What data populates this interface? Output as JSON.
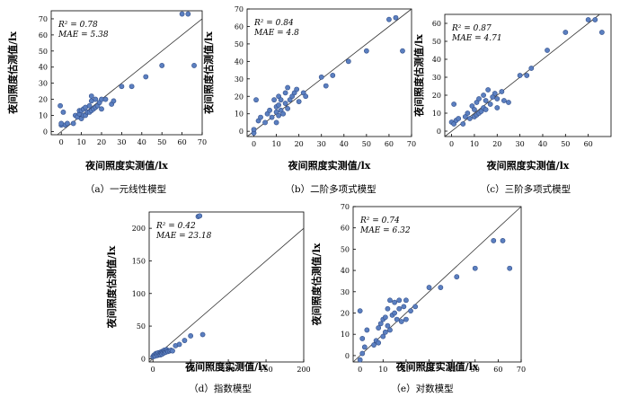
{
  "chart_data": [
    {
      "type": "scatter",
      "caption": "（a）一元线性模型",
      "xlabel": "夜间照度实测值/lx",
      "ylabel": "夜间照度估测值/lx",
      "xlim": [
        -5,
        70
      ],
      "ylim": [
        -2,
        75
      ],
      "xticks": [
        0,
        10,
        20,
        30,
        40,
        50,
        60,
        70
      ],
      "yticks": [
        0,
        10,
        20,
        30,
        40,
        50,
        60,
        70
      ],
      "stats": [
        "R² = 0.78",
        "MAE = 5.38"
      ],
      "reference_line": "y = x",
      "points": [
        [
          0,
          4
        ],
        [
          0,
          5
        ],
        [
          -0.5,
          16
        ],
        [
          1,
          12
        ],
        [
          2,
          4
        ],
        [
          3,
          5
        ],
        [
          6,
          5
        ],
        [
          7,
          10
        ],
        [
          8,
          9
        ],
        [
          9,
          11
        ],
        [
          9,
          13
        ],
        [
          10,
          8
        ],
        [
          10,
          13
        ],
        [
          11,
          10
        ],
        [
          11,
          14
        ],
        [
          12,
          10
        ],
        [
          12,
          15
        ],
        [
          13,
          12
        ],
        [
          14,
          12
        ],
        [
          14,
          16
        ],
        [
          15,
          13
        ],
        [
          15,
          19
        ],
        [
          15,
          22
        ],
        [
          16,
          14
        ],
        [
          17,
          15
        ],
        [
          17,
          20
        ],
        [
          18,
          16
        ],
        [
          19,
          18
        ],
        [
          20,
          14
        ],
        [
          20,
          20
        ],
        [
          22,
          20
        ],
        [
          25,
          17
        ],
        [
          26,
          19
        ],
        [
          30,
          28
        ],
        [
          35,
          28
        ],
        [
          42,
          34
        ],
        [
          50,
          41
        ],
        [
          60,
          73
        ],
        [
          63,
          73
        ],
        [
          66,
          41
        ]
      ]
    },
    {
      "type": "scatter",
      "caption": "（b）二阶多项式模型",
      "xlabel": "夜间照度实测值/lx",
      "ylabel": "夜间照度估测值/lx",
      "xlim": [
        -3,
        70
      ],
      "ylim": [
        -3,
        70
      ],
      "xticks": [
        0,
        10,
        20,
        30,
        40,
        50,
        60,
        70
      ],
      "yticks": [
        0,
        10,
        20,
        30,
        40,
        50,
        60,
        70
      ],
      "stats": [
        "R² = 0.84",
        "MAE = 4.8"
      ],
      "reference_line": "y = x",
      "points": [
        [
          0,
          -1
        ],
        [
          0,
          1
        ],
        [
          1,
          18
        ],
        [
          2,
          6
        ],
        [
          3,
          8
        ],
        [
          5,
          5
        ],
        [
          6,
          10
        ],
        [
          7,
          12
        ],
        [
          8,
          8
        ],
        [
          9,
          18
        ],
        [
          10,
          5
        ],
        [
          10,
          11
        ],
        [
          10,
          14
        ],
        [
          11,
          9
        ],
        [
          11,
          15
        ],
        [
          11,
          20
        ],
        [
          12,
          12
        ],
        [
          12,
          18
        ],
        [
          13,
          10
        ],
        [
          14,
          16
        ],
        [
          14,
          22
        ],
        [
          15,
          13
        ],
        [
          15,
          25
        ],
        [
          16,
          18
        ],
        [
          17,
          20
        ],
        [
          18,
          22
        ],
        [
          19,
          24
        ],
        [
          20,
          17
        ],
        [
          22,
          22
        ],
        [
          23,
          20
        ],
        [
          30,
          31
        ],
        [
          32,
          26
        ],
        [
          35,
          32
        ],
        [
          42,
          40
        ],
        [
          50,
          46
        ],
        [
          60,
          64
        ],
        [
          63,
          65
        ],
        [
          66,
          46
        ]
      ]
    },
    {
      "type": "scatter",
      "caption": "（c）三阶多项式模型",
      "xlabel": "夜间照度实测值/lx",
      "ylabel": "夜间照度估测值/lx",
      "xlim": [
        -3,
        70
      ],
      "ylim": [
        -3,
        65
      ],
      "xticks": [
        0,
        10,
        20,
        30,
        40,
        50,
        60
      ],
      "yticks": [
        0,
        10,
        20,
        30,
        40,
        50,
        60
      ],
      "stats": [
        "R² = 0.87",
        "MAE = 4.71"
      ],
      "reference_line": "y = x",
      "points": [
        [
          0,
          5
        ],
        [
          1,
          4
        ],
        [
          1,
          15
        ],
        [
          2,
          6
        ],
        [
          3,
          7
        ],
        [
          5,
          4
        ],
        [
          6,
          8
        ],
        [
          7,
          10
        ],
        [
          8,
          7
        ],
        [
          9,
          14
        ],
        [
          10,
          8
        ],
        [
          10,
          12
        ],
        [
          11,
          9
        ],
        [
          11,
          16
        ],
        [
          12,
          10
        ],
        [
          12,
          18
        ],
        [
          13,
          11
        ],
        [
          14,
          13
        ],
        [
          14,
          20
        ],
        [
          15,
          12
        ],
        [
          15,
          17
        ],
        [
          16,
          23
        ],
        [
          17,
          15
        ],
        [
          18,
          19
        ],
        [
          19,
          21
        ],
        [
          20,
          13
        ],
        [
          20,
          18
        ],
        [
          22,
          22
        ],
        [
          23,
          17
        ],
        [
          25,
          16
        ],
        [
          30,
          31
        ],
        [
          33,
          31
        ],
        [
          35,
          35
        ],
        [
          42,
          45
        ],
        [
          50,
          55
        ],
        [
          60,
          62
        ],
        [
          63,
          62
        ],
        [
          66,
          55
        ]
      ]
    },
    {
      "type": "scatter",
      "caption": "（d）指数模型",
      "xlabel": "夜间照度实测值/lx",
      "ylabel": "夜间照度估测值/lx",
      "xlim": [
        -5,
        200
      ],
      "ylim": [
        -5,
        225
      ],
      "xticks": [
        0,
        50,
        100,
        150,
        200
      ],
      "yticks": [
        0,
        50,
        100,
        150,
        200
      ],
      "stats": [
        "R² = 0.42",
        "MAE = 23.18"
      ],
      "reference_line": "y = x",
      "points": [
        [
          0,
          3
        ],
        [
          1,
          5
        ],
        [
          2,
          6
        ],
        [
          3,
          4
        ],
        [
          4,
          8
        ],
        [
          5,
          7
        ],
        [
          6,
          5
        ],
        [
          7,
          9
        ],
        [
          8,
          6
        ],
        [
          9,
          8
        ],
        [
          10,
          10
        ],
        [
          10,
          6
        ],
        [
          11,
          9
        ],
        [
          12,
          11
        ],
        [
          12,
          7
        ],
        [
          13,
          10
        ],
        [
          14,
          12
        ],
        [
          15,
          9
        ],
        [
          15,
          13
        ],
        [
          16,
          11
        ],
        [
          17,
          10
        ],
        [
          18,
          14
        ],
        [
          19,
          12
        ],
        [
          20,
          11
        ],
        [
          22,
          12
        ],
        [
          24,
          13
        ],
        [
          26,
          12
        ],
        [
          30,
          20
        ],
        [
          35,
          22
        ],
        [
          42,
          28
        ],
        [
          50,
          35
        ],
        [
          60,
          218
        ],
        [
          62,
          219
        ],
        [
          66,
          37
        ]
      ]
    },
    {
      "type": "scatter",
      "caption": "（e）对数模型",
      "xlabel": "夜间照度实测值/lx",
      "ylabel": "夜间照度估测值/lx",
      "xlim": [
        -3,
        70
      ],
      "ylim": [
        -3,
        70
      ],
      "xticks": [
        0,
        10,
        20,
        30,
        40,
        50,
        60,
        70
      ],
      "yticks": [
        0,
        10,
        20,
        30,
        40,
        50,
        60,
        70
      ],
      "stats": [
        "R² = 0.74",
        "MAE = 6.32"
      ],
      "reference_line": "y = x",
      "points": [
        [
          0,
          21
        ],
        [
          0,
          -2
        ],
        [
          1,
          1
        ],
        [
          1,
          8
        ],
        [
          2,
          4
        ],
        [
          3,
          12
        ],
        [
          6,
          5
        ],
        [
          7,
          7
        ],
        [
          8,
          6
        ],
        [
          8,
          13
        ],
        [
          9,
          15
        ],
        [
          10,
          9
        ],
        [
          10,
          17
        ],
        [
          11,
          18
        ],
        [
          11,
          11
        ],
        [
          12,
          14
        ],
        [
          12,
          22
        ],
        [
          13,
          12
        ],
        [
          13,
          26
        ],
        [
          14,
          19
        ],
        [
          15,
          20
        ],
        [
          15,
          25
        ],
        [
          16,
          17
        ],
        [
          17,
          22
        ],
        [
          17,
          26
        ],
        [
          18,
          16
        ],
        [
          19,
          23
        ],
        [
          20,
          17
        ],
        [
          20,
          26
        ],
        [
          22,
          21
        ],
        [
          24,
          23
        ],
        [
          30,
          32
        ],
        [
          35,
          32
        ],
        [
          42,
          37
        ],
        [
          50,
          41
        ],
        [
          58,
          54
        ],
        [
          62,
          54
        ],
        [
          65,
          41
        ]
      ]
    }
  ]
}
